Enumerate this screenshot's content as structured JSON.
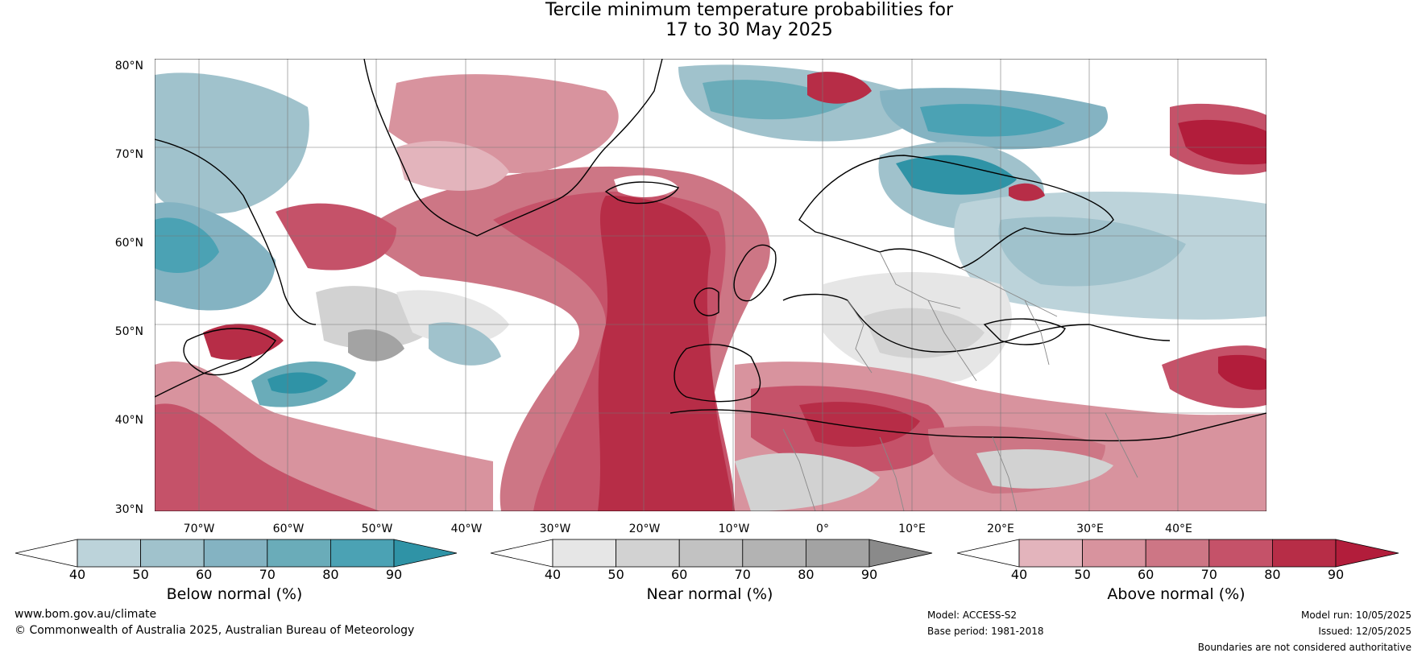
{
  "title_line1": "Tercile minimum temperature probabilities for",
  "title_line2": "17 to 30 May 2025",
  "lat_labels": [
    "80°N",
    "70°N",
    "60°N",
    "50°N",
    "40°N",
    "30°N"
  ],
  "lon_labels": [
    "70°W",
    "60°W",
    "50°W",
    "40°W",
    "30°W",
    "20°W",
    "10°W",
    "0°",
    "10°E",
    "20°E",
    "30°E",
    "40°E"
  ],
  "colorbars": [
    {
      "label": "Below normal (%)",
      "ticks": [
        "40",
        "50",
        "60",
        "70",
        "80",
        "90"
      ],
      "colors": [
        "#ffffff",
        "#bcd3da",
        "#a0c2cc",
        "#84b3c2",
        "#6aacb9",
        "#4ba2b4",
        "#2f93a6"
      ]
    },
    {
      "label": "Near normal (%)",
      "ticks": [
        "40",
        "50",
        "60",
        "70",
        "80",
        "90"
      ],
      "colors": [
        "#ffffff",
        "#e6e6e6",
        "#d2d2d2",
        "#c2c2c2",
        "#b3b3b3",
        "#a3a3a3",
        "#8a8a8a"
      ]
    },
    {
      "label": "Above normal (%)",
      "ticks": [
        "40",
        "50",
        "60",
        "70",
        "80",
        "90"
      ],
      "colors": [
        "#ffffff",
        "#e3b4bc",
        "#d8939e",
        "#cd7685",
        "#c55269",
        "#b72d47",
        "#b21d3b"
      ]
    }
  ],
  "footer": {
    "website": "www.bom.gov.au/climate",
    "copyright": "© Commonwealth of Australia 2025, Australian Bureau of Meteorology",
    "model": "Model: ACCESS-S2",
    "base_period": "Base period: 1981-2018",
    "model_run": "Model run: 10/05/2025",
    "issued": "Issued: 12/05/2025",
    "disclaimer": "Boundaries are not considered authoritative"
  }
}
